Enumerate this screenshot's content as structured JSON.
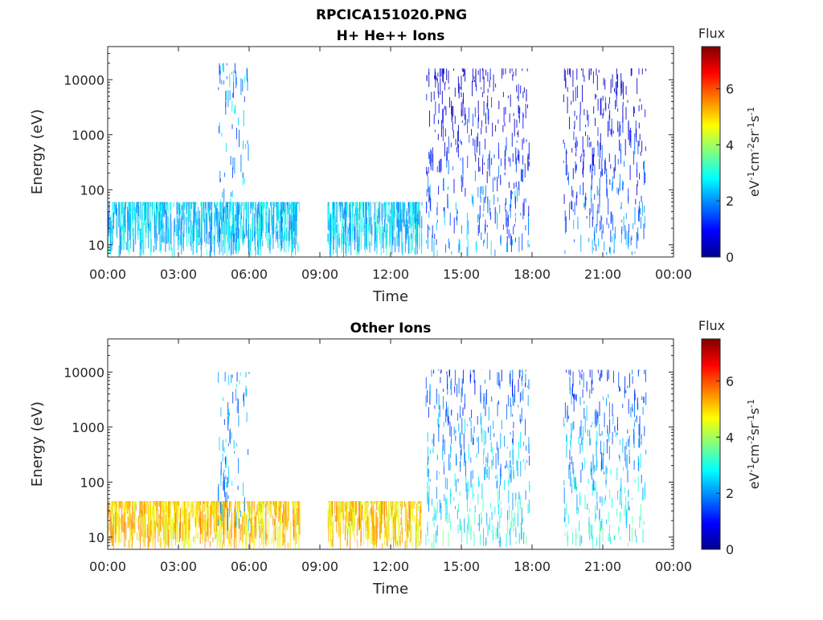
{
  "figure_title": "RPCICA151020.PNG",
  "colors": {
    "colormap": [
      "#00008f",
      "#0000ff",
      "#0080ff",
      "#00ffff",
      "#80ff80",
      "#ffff00",
      "#ff8000",
      "#ff0000",
      "#800000"
    ],
    "axis": "#262626",
    "background": "#ffffff"
  },
  "chart_data": [
    {
      "type": "heatmap",
      "title": "H+ He++ Ions",
      "xlabel": "Time",
      "ylabel": "Energy (eV)",
      "xlim": [
        "00:00",
        "24:00"
      ],
      "x_ticks": [
        "00:00",
        "03:00",
        "06:00",
        "09:00",
        "12:00",
        "15:00",
        "18:00",
        "21:00",
        "00:00"
      ],
      "y_scale": "log",
      "ylim": [
        6,
        40000
      ],
      "y_ticks": [
        "10",
        "100",
        "1000",
        "10000"
      ],
      "colorbar": {
        "title": "Flux",
        "label": "eV-1cm-2sr-1s-1",
        "range": [
          0,
          7.5
        ],
        "ticks": [
          "0",
          "2",
          "4",
          "6"
        ]
      },
      "data_gaps": [
        [
          "08:15",
          "09:20"
        ],
        [
          "17:55",
          "19:20"
        ],
        [
          "22:50",
          "24:00"
        ]
      ],
      "features": [
        {
          "name": "low-energy ion band",
          "time": [
            "00:00",
            "08:10"
          ],
          "energy_ev": [
            6,
            60
          ],
          "flux": 2.5
        },
        {
          "name": "energetic burst",
          "time": [
            "04:40",
            "06:00"
          ],
          "energy_ev": [
            10,
            20000
          ],
          "flux": 2.0
        },
        {
          "name": "low-energy ion band",
          "time": [
            "09:20",
            "13:20"
          ],
          "energy_ev": [
            6,
            60
          ],
          "flux": 2.5
        },
        {
          "name": "broad spectrum",
          "time": [
            "13:30",
            "17:55"
          ],
          "energy_ev": [
            6,
            16000
          ],
          "flux": 2.0
        },
        {
          "name": "broad spectrum",
          "time": [
            "19:20",
            "22:50"
          ],
          "energy_ev": [
            6,
            16000
          ],
          "flux": 2.0
        }
      ]
    },
    {
      "type": "heatmap",
      "title": "Other Ions",
      "xlabel": "Time",
      "ylabel": "Energy (eV)",
      "xlim": [
        "00:00",
        "24:00"
      ],
      "x_ticks": [
        "00:00",
        "03:00",
        "06:00",
        "09:00",
        "12:00",
        "15:00",
        "18:00",
        "21:00",
        "00:00"
      ],
      "y_scale": "log",
      "ylim": [
        6,
        40000
      ],
      "y_ticks": [
        "10",
        "100",
        "1000",
        "10000"
      ],
      "colorbar": {
        "title": "Flux",
        "label": "eV-1cm-2sr-1s-1",
        "range": [
          0,
          7.5
        ],
        "ticks": [
          "0",
          "2",
          "4",
          "6"
        ]
      },
      "data_gaps": [
        [
          "08:15",
          "09:20"
        ],
        [
          "17:55",
          "19:20"
        ],
        [
          "22:50",
          "24:00"
        ]
      ],
      "features": [
        {
          "name": "intense low-energy band",
          "time": [
            "00:00",
            "08:10"
          ],
          "energy_ev": [
            6,
            45
          ],
          "flux": 5.0
        },
        {
          "name": "energetic burst",
          "time": [
            "04:40",
            "06:00"
          ],
          "energy_ev": [
            10,
            10000
          ],
          "flux": 2.0
        },
        {
          "name": "intense low-energy band",
          "time": [
            "09:20",
            "13:20"
          ],
          "energy_ev": [
            6,
            45
          ],
          "flux": 5.0
        },
        {
          "name": "broad spectrum",
          "time": [
            "13:30",
            "17:55"
          ],
          "energy_ev": [
            6,
            11000
          ],
          "flux": 3.0
        },
        {
          "name": "broad spectrum",
          "time": [
            "19:20",
            "22:50"
          ],
          "energy_ev": [
            6,
            11000
          ],
          "flux": 3.0
        }
      ]
    }
  ]
}
